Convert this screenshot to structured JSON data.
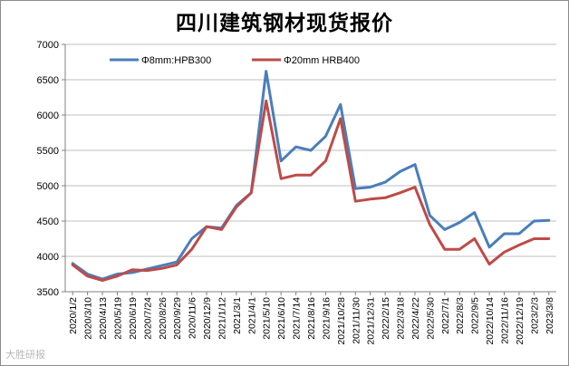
{
  "chart_data": {
    "type": "line",
    "title": "四川建筑钢材现货报价",
    "xlabel": "",
    "ylabel": "",
    "ylim": [
      3500,
      7000
    ],
    "yticks": [
      3500,
      4000,
      4500,
      5000,
      5500,
      6000,
      6500,
      7000
    ],
    "grid": "horizontal",
    "legend_position": "top-left",
    "x_tick_labels": [
      "2020/1/2",
      "2020/3/10",
      "2020/4/13",
      "2020/5/19",
      "2020/6/19",
      "2020/7/24",
      "2020/8/26",
      "2020/9/29",
      "2020/11/6",
      "2020/12/9",
      "2021/1/12",
      "2021/3/1",
      "2021/4/1",
      "2021/5/10",
      "2021/6/10",
      "2021/7/14",
      "2021/8/16",
      "2021/9/16",
      "2021/10/28",
      "2021/11/30",
      "2021/12/31",
      "2022/2/15",
      "2022/3/18",
      "2022/4/22",
      "2022/5/30",
      "2022/7/1",
      "2022/8/3",
      "2022/9/5",
      "2022/10/14",
      "2022/11/16",
      "2022/12/19",
      "2023/2/3",
      "2023/3/8"
    ],
    "x": [
      "2020/1/2",
      "2020/3/10",
      "2020/4/13",
      "2020/5/19",
      "2020/6/19",
      "2020/7/24",
      "2020/8/26",
      "2020/9/29",
      "2020/11/6",
      "2020/12/9",
      "2021/1/12",
      "2021/3/1",
      "2021/4/1",
      "2021/5/10",
      "2021/6/10",
      "2021/7/14",
      "2021/8/16",
      "2021/9/16",
      "2021/10/28",
      "2021/11/30",
      "2021/12/31",
      "2022/2/15",
      "2022/3/18",
      "2022/4/22",
      "2022/5/30",
      "2022/7/1",
      "2022/8/3",
      "2022/9/5",
      "2022/10/14",
      "2022/11/16",
      "2022/12/19",
      "2023/2/3",
      "2023/3/8"
    ],
    "series": [
      {
        "name": "Φ8mm:HPB300",
        "color": "#4a7ebb",
        "values": [
          3900,
          3750,
          3680,
          3750,
          3770,
          3820,
          3870,
          3920,
          4250,
          4420,
          4400,
          4720,
          4900,
          6620,
          5350,
          5550,
          5500,
          5700,
          6150,
          4960,
          4980,
          5050,
          5200,
          5300,
          4580,
          4380,
          4480,
          4620,
          4130,
          4320,
          4320,
          4500,
          4510
        ]
      },
      {
        "name": "Φ20mm HRB400",
        "color": "#be4b48",
        "values": [
          3880,
          3720,
          3660,
          3720,
          3810,
          3800,
          3830,
          3880,
          4100,
          4420,
          4380,
          4700,
          4900,
          6200,
          5100,
          5150,
          5150,
          5350,
          5950,
          4780,
          4810,
          4830,
          4900,
          4980,
          4450,
          4100,
          4100,
          4250,
          3890,
          4060,
          4160,
          4250,
          4250
        ]
      }
    ]
  },
  "watermark": "大胜研报"
}
